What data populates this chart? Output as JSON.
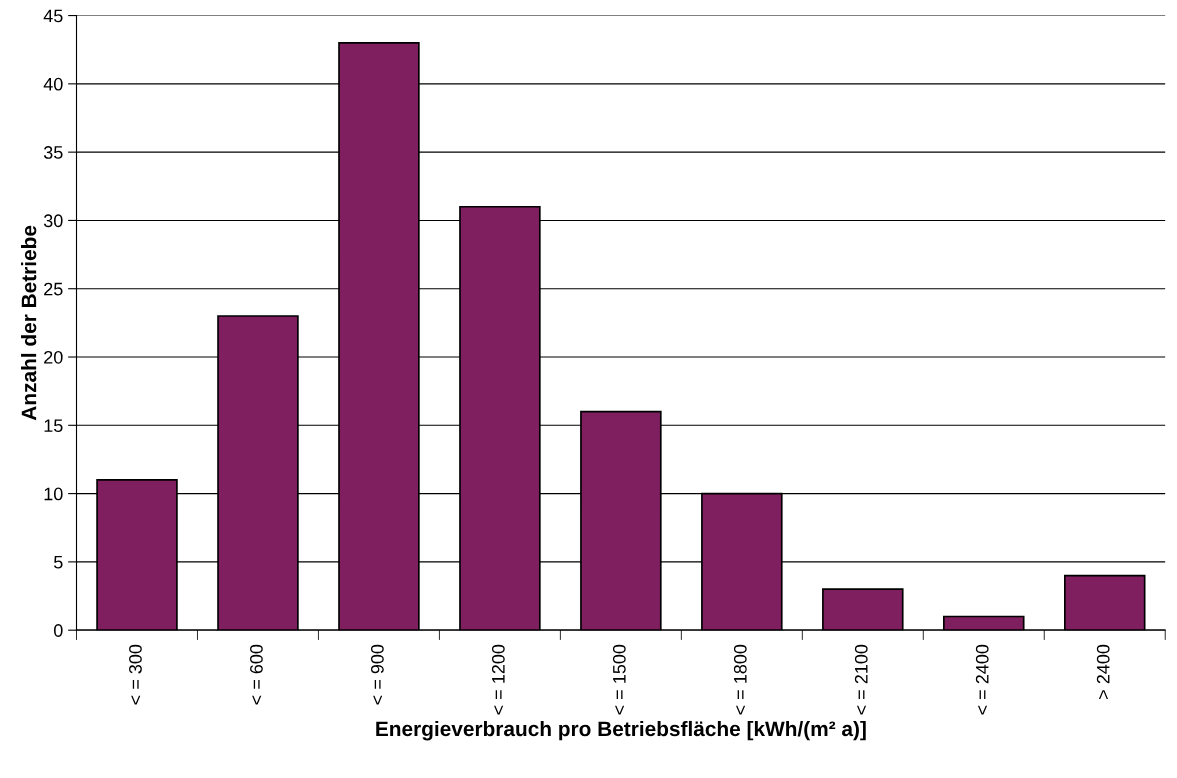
{
  "chart_data": {
    "type": "bar",
    "xlabel": "Energieverbrauch pro Betriebsfläche [kWh/(m² a)]",
    "ylabel": "Anzahl der Betriebe",
    "categories": [
      "< = 300",
      "< = 600",
      "< = 900",
      "< = 1200",
      "< = 1500",
      "< = 1800",
      "< = 2100",
      "< = 2400",
      "> 2400"
    ],
    "values": [
      11,
      23,
      43,
      31,
      16,
      10,
      3,
      1,
      4
    ],
    "color": "#7f1f5f",
    "ylim": [
      0,
      45
    ],
    "yticks": [
      0,
      5,
      10,
      15,
      20,
      25,
      30,
      35,
      40,
      45
    ],
    "grid": "y",
    "legend": false
  }
}
